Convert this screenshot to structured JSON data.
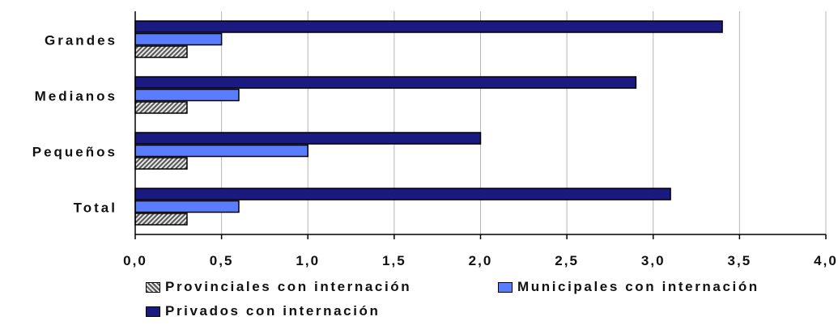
{
  "chart_data": {
    "type": "bar",
    "orientation": "horizontal",
    "categories": [
      "Grandes",
      "Medianos",
      "Pequeños",
      "Total"
    ],
    "series": [
      {
        "name": "Provinciales con internación",
        "values": [
          0.3,
          0.3,
          0.3,
          0.3
        ],
        "color": "#cfcfcf",
        "pattern": "hatched"
      },
      {
        "name": "Municipales con internación",
        "values": [
          0.5,
          0.6,
          1.0,
          0.6
        ],
        "color": "#5a7dff"
      },
      {
        "name": "Privados con internación",
        "values": [
          3.4,
          2.9,
          2.0,
          3.1
        ],
        "color": "#1a1a80"
      }
    ],
    "x_ticks": [
      "0,0",
      "0,5",
      "1,0",
      "1,5",
      "2,0",
      "2,5",
      "3,0",
      "3,5",
      "4,0"
    ],
    "xlim": [
      0,
      4.0
    ],
    "grid": "vertical",
    "legend_position": "bottom"
  }
}
